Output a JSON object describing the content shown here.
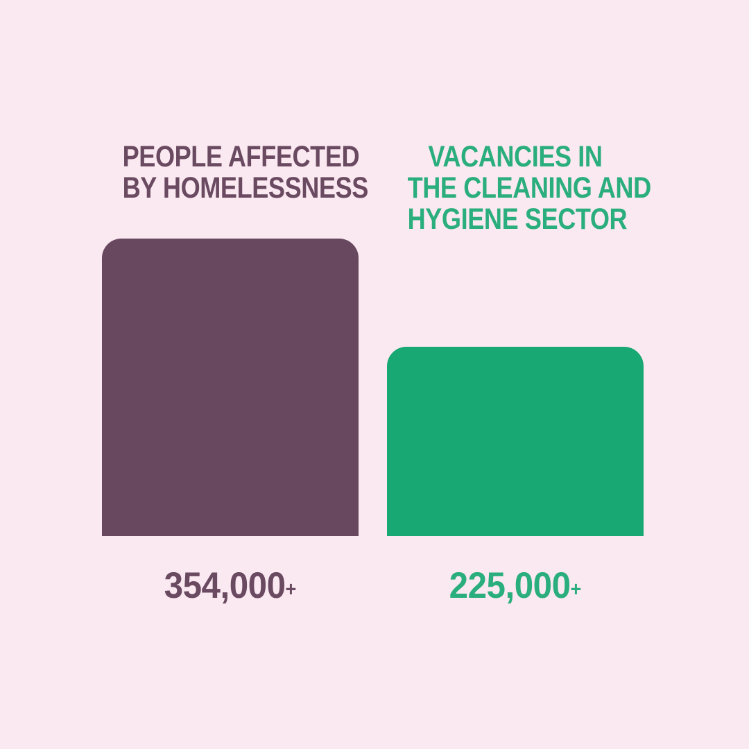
{
  "background_color": "#FBE9F2",
  "chart_data": {
    "type": "bar",
    "categories": [
      "PEOPLE AFFECTED BY HOMELESSNESS",
      "VACANCIES IN THE CLEANING AND HYGIENE SECTOR"
    ],
    "values": [
      354000,
      225000
    ],
    "value_labels": [
      "354,000+",
      "225,000+"
    ],
    "title": "",
    "xlabel": "",
    "ylabel": "",
    "ylim": [
      0,
      354000
    ],
    "grid": false,
    "legend": "none",
    "bar_colors": [
      "#68485E",
      "#18A873"
    ],
    "layout_hint": "two side-by-side rounded-top bars, category labels above bars, value labels below bars"
  },
  "bars": [
    {
      "label_lines": [
        "PEOPLE AFFECTED",
        "BY HOMELESSNESS"
      ],
      "value": 354000,
      "value_label": "354,000",
      "value_suffix": "+",
      "bar_color": "#68485E",
      "text_color": "#6A4A60"
    },
    {
      "label_lines": [
        "VACANCIES IN",
        "THE CLEANING AND",
        "HYGIENE SECTOR"
      ],
      "value": 225000,
      "value_label": "225,000",
      "value_suffix": "+",
      "bar_color": "#18A873",
      "text_color": "#2BAE7D"
    }
  ]
}
